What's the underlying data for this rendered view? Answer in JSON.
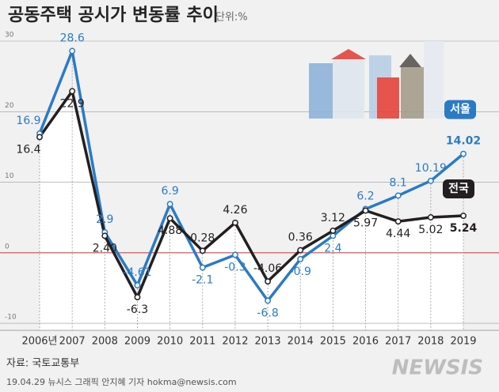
{
  "chart_data": {
    "type": "line",
    "title": "공동주택 공시가 변동률 추이",
    "unit": "단위:%",
    "categories": [
      "2006년",
      "2007",
      "2008",
      "2009",
      "2010",
      "2011",
      "2012",
      "2013",
      "2014",
      "2015",
      "2016",
      "2017",
      "2018",
      "2019"
    ],
    "series": [
      {
        "name": "서울",
        "color": "#2b7bc4",
        "values": [
          16.9,
          28.6,
          2.9,
          -4.61,
          6.9,
          -2.1,
          -0.3,
          -6.8,
          -0.9,
          2.4,
          6.2,
          8.1,
          10.19,
          14.02
        ],
        "value_labels": [
          "16.9",
          "28.6",
          "2.9",
          "-4.61",
          "6.9",
          "-2.1",
          "-0.3",
          "-6.8",
          "-0.9",
          "2.4",
          "6.2",
          "8.1",
          "10.19",
          "14.02"
        ]
      },
      {
        "name": "전국",
        "color": "#231f20",
        "values": [
          16.4,
          22.9,
          2.4,
          -6.3,
          4.88,
          0.28,
          4.26,
          -4.06,
          0.36,
          3.12,
          5.97,
          4.44,
          5.02,
          5.24
        ],
        "value_labels": [
          "16.4",
          "22.9",
          "2.40",
          "-6.3",
          "4.88",
          "0.28",
          "4.26",
          "-4.06",
          "0.36",
          "3.12",
          "5.97",
          "4.44",
          "5.02",
          "5.24"
        ]
      }
    ],
    "ylim": [
      -11,
      30
    ],
    "yticks": [
      -10,
      0,
      10,
      20,
      30
    ],
    "source": "자료: 국토교통부",
    "credit": "19.04.29 뉴시스 그래픽 안지혜 기자 hokma@newsis.com",
    "watermark": "NEWSIS"
  }
}
